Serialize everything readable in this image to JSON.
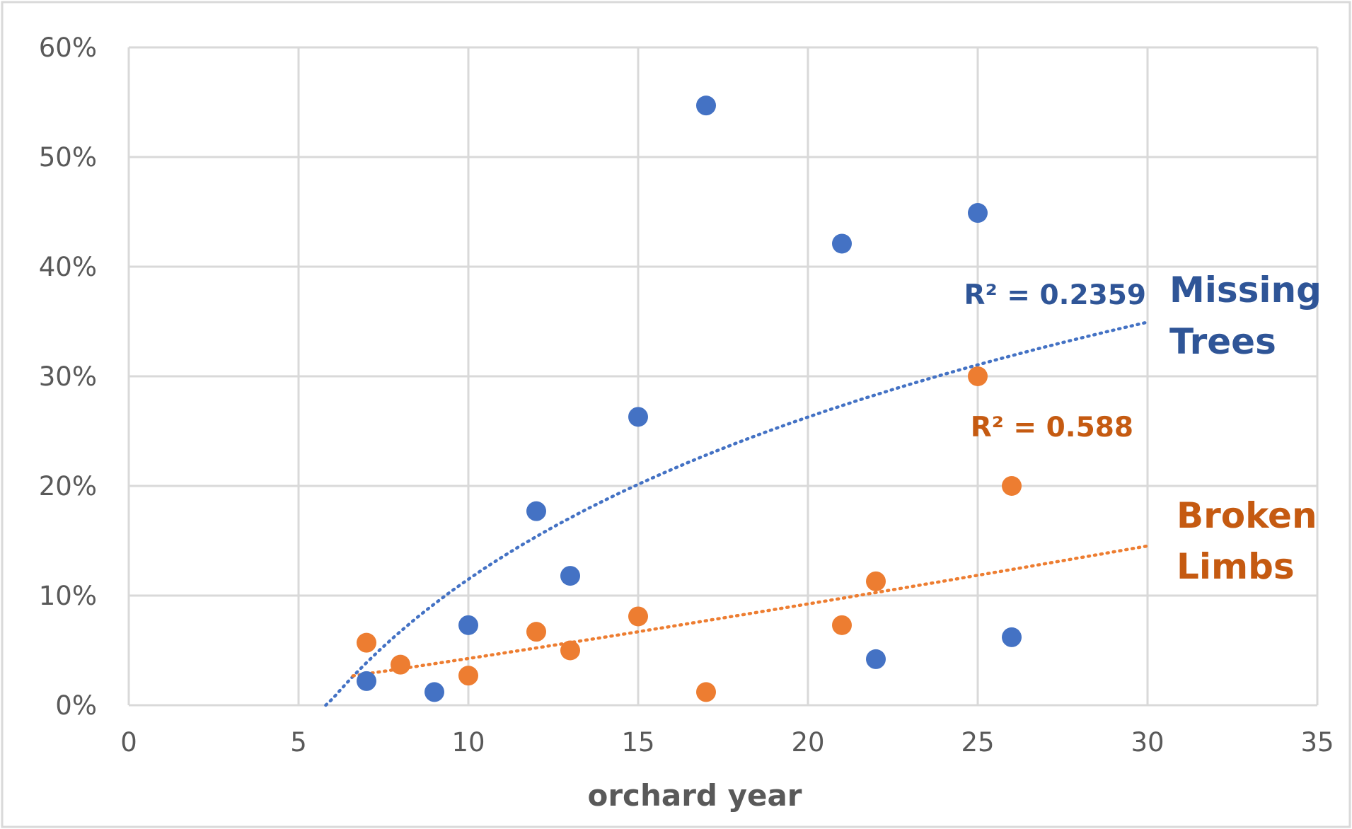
{
  "colors": {
    "missing_trees": "#4472C4",
    "missing_trees_label": "#2F5597",
    "broken_limbs": "#ED7D31",
    "broken_limbs_label": "#C55A11",
    "grid": "#D9D9D9",
    "tick_text": "#595959"
  },
  "annotations": {
    "missing_trees_r2": "R² = 0.2359",
    "broken_limbs_r2": "R² = 0.588",
    "missing_trees_line1": "Missing",
    "missing_trees_line2": "Trees",
    "broken_limbs_line1": "Broken",
    "broken_limbs_line2": "Limbs"
  },
  "chart_data": {
    "type": "scatter",
    "title": "",
    "xlabel": "orchard year",
    "ylabel": "",
    "xlim": [
      0,
      35
    ],
    "ylim": [
      0,
      0.6
    ],
    "x_ticks": [
      0,
      5,
      10,
      15,
      20,
      25,
      30,
      35
    ],
    "y_ticks": [
      0,
      0.1,
      0.2,
      0.3,
      0.4,
      0.5,
      0.6
    ],
    "y_tick_labels": [
      "0%",
      "10%",
      "20%",
      "30%",
      "40%",
      "50%",
      "60%"
    ],
    "grid": true,
    "legend": "none",
    "series": [
      {
        "name": "Missing Trees",
        "color": "#4472C4",
        "points": [
          [
            7,
            0.022
          ],
          [
            9,
            0.012
          ],
          [
            10,
            0.073
          ],
          [
            12,
            0.177
          ],
          [
            13,
            0.118
          ],
          [
            15,
            0.263
          ],
          [
            17,
            0.547
          ],
          [
            21,
            0.421
          ],
          [
            22,
            0.042
          ],
          [
            25,
            0.449
          ],
          [
            26,
            0.062
          ]
        ],
        "trendline": {
          "type": "logarithmic",
          "x_range": [
            5.8,
            30
          ],
          "r2": 0.2359
        }
      },
      {
        "name": "Broken Limbs",
        "color": "#ED7D31",
        "points": [
          [
            7,
            0.057
          ],
          [
            8,
            0.037
          ],
          [
            10,
            0.027
          ],
          [
            12,
            0.067
          ],
          [
            13,
            0.05
          ],
          [
            15,
            0.081
          ],
          [
            17,
            0.012
          ],
          [
            21,
            0.073
          ],
          [
            22,
            0.113
          ],
          [
            25,
            0.3
          ],
          [
            26,
            0.2
          ]
        ],
        "trendline": {
          "type": "power",
          "x_range": [
            6.6,
            30
          ],
          "r2": 0.588
        }
      }
    ]
  }
}
